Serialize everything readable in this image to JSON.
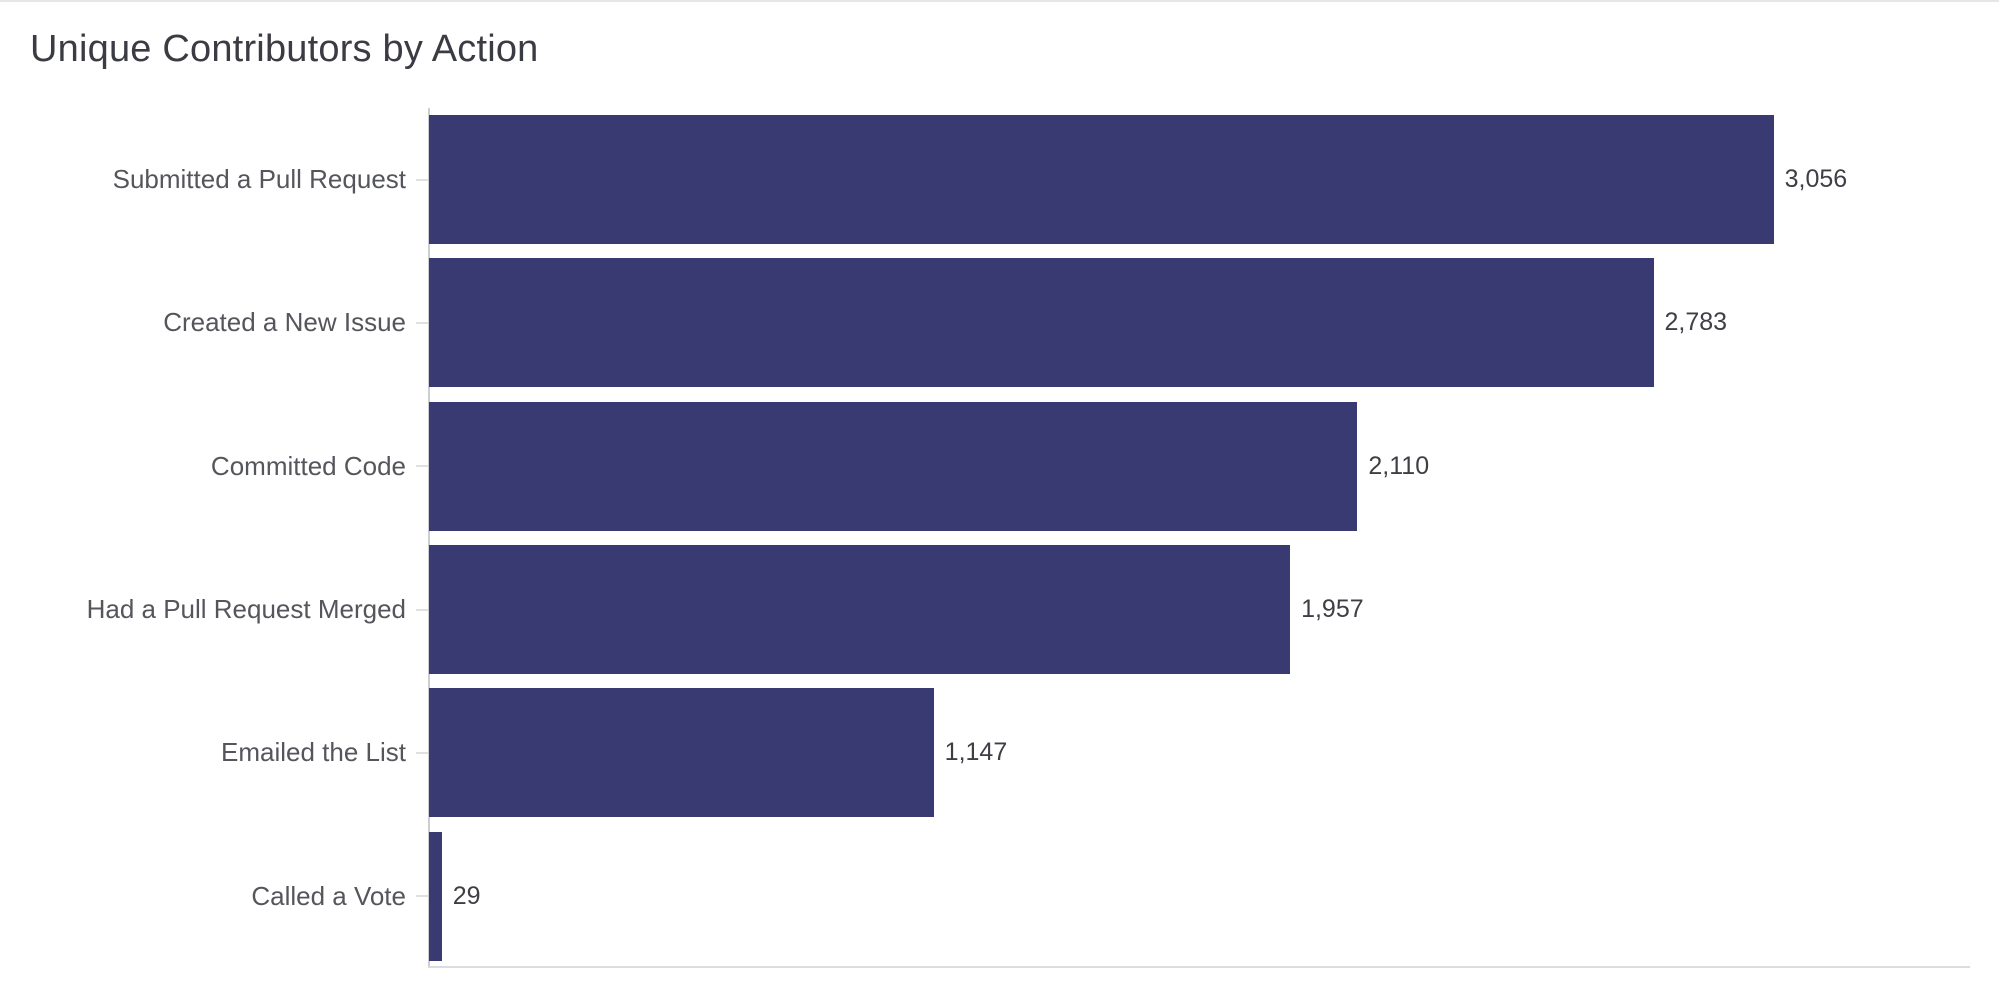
{
  "header": {
    "title": "Unique Contributors by Action"
  },
  "chart_data": {
    "type": "bar",
    "orientation": "horizontal",
    "title": "Unique Contributors by Action",
    "categories": [
      "Submitted a Pull Request",
      "Created a New Issue",
      "Committed Code",
      "Had a Pull Request Merged",
      "Emailed the List",
      "Called a Vote"
    ],
    "values": [
      3056,
      2783,
      2110,
      1957,
      1147,
      29
    ],
    "value_labels": [
      "3,056",
      "2,783",
      "2,110",
      "1,957",
      "1,147",
      "29"
    ],
    "xlabel": "",
    "ylabel": "",
    "xlim": [
      0,
      3500
    ],
    "grid": false,
    "legend": "none",
    "value_label_position": "end-of-bar",
    "bar_color": "#3a3a73",
    "axis_line_color": "#cdced4",
    "tick_color": "#e0e0e3",
    "title_color": "#3b3c43",
    "label_color": "#55565c",
    "value_color": "#3e3f45",
    "background_color": "#ffffff"
  }
}
